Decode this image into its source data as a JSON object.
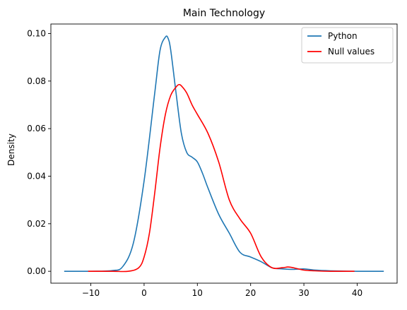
{
  "chart_data": {
    "type": "line",
    "title": "Main Technology",
    "xlabel": "",
    "ylabel": "Density",
    "xlim": [
      -17.5,
      47.5
    ],
    "ylim": [
      -0.005,
      0.104
    ],
    "xticks": [
      -10,
      0,
      10,
      20,
      30,
      40
    ],
    "yticks": [
      0.0,
      0.02,
      0.04,
      0.06,
      0.08,
      0.1
    ],
    "ytick_labels": [
      "0.00",
      "0.02",
      "0.04",
      "0.06",
      "0.08",
      "0.10"
    ],
    "legend": {
      "placement": "top-right"
    },
    "grid": false,
    "series": [
      {
        "name": "Python",
        "color": "#1f77b4",
        "x": [
          -15,
          -10,
          -6,
          -4,
          -2,
          0,
          2,
          3,
          4,
          4.5,
          5,
          6,
          7,
          8,
          9,
          10,
          11,
          12,
          14,
          16,
          18,
          20,
          22,
          24,
          26,
          28,
          30,
          32,
          35,
          40,
          45
        ],
        "y": [
          0,
          0,
          0.0003,
          0.002,
          0.012,
          0.038,
          0.075,
          0.093,
          0.0985,
          0.098,
          0.093,
          0.075,
          0.058,
          0.05,
          0.048,
          0.046,
          0.041,
          0.035,
          0.024,
          0.016,
          0.008,
          0.006,
          0.004,
          0.0015,
          0.001,
          0.0008,
          0.001,
          0.0005,
          0.0002,
          0,
          0
        ]
      },
      {
        "name": "Null values",
        "color": "#ff0000",
        "x": [
          -10.5,
          -6,
          -3,
          -1,
          0,
          1,
          2,
          3,
          4,
          5,
          6,
          6.5,
          7,
          8,
          9,
          10,
          12,
          14,
          16,
          18,
          20,
          22,
          24,
          26,
          27,
          28,
          30,
          32,
          35,
          39.5
        ],
        "y": [
          0,
          0,
          0,
          0.0015,
          0.006,
          0.016,
          0.033,
          0.052,
          0.066,
          0.074,
          0.0775,
          0.0785,
          0.078,
          0.075,
          0.07,
          0.066,
          0.058,
          0.046,
          0.03,
          0.022,
          0.016,
          0.006,
          0.0015,
          0.0015,
          0.0018,
          0.0015,
          0.0005,
          0.0002,
          0,
          0
        ]
      }
    ]
  }
}
